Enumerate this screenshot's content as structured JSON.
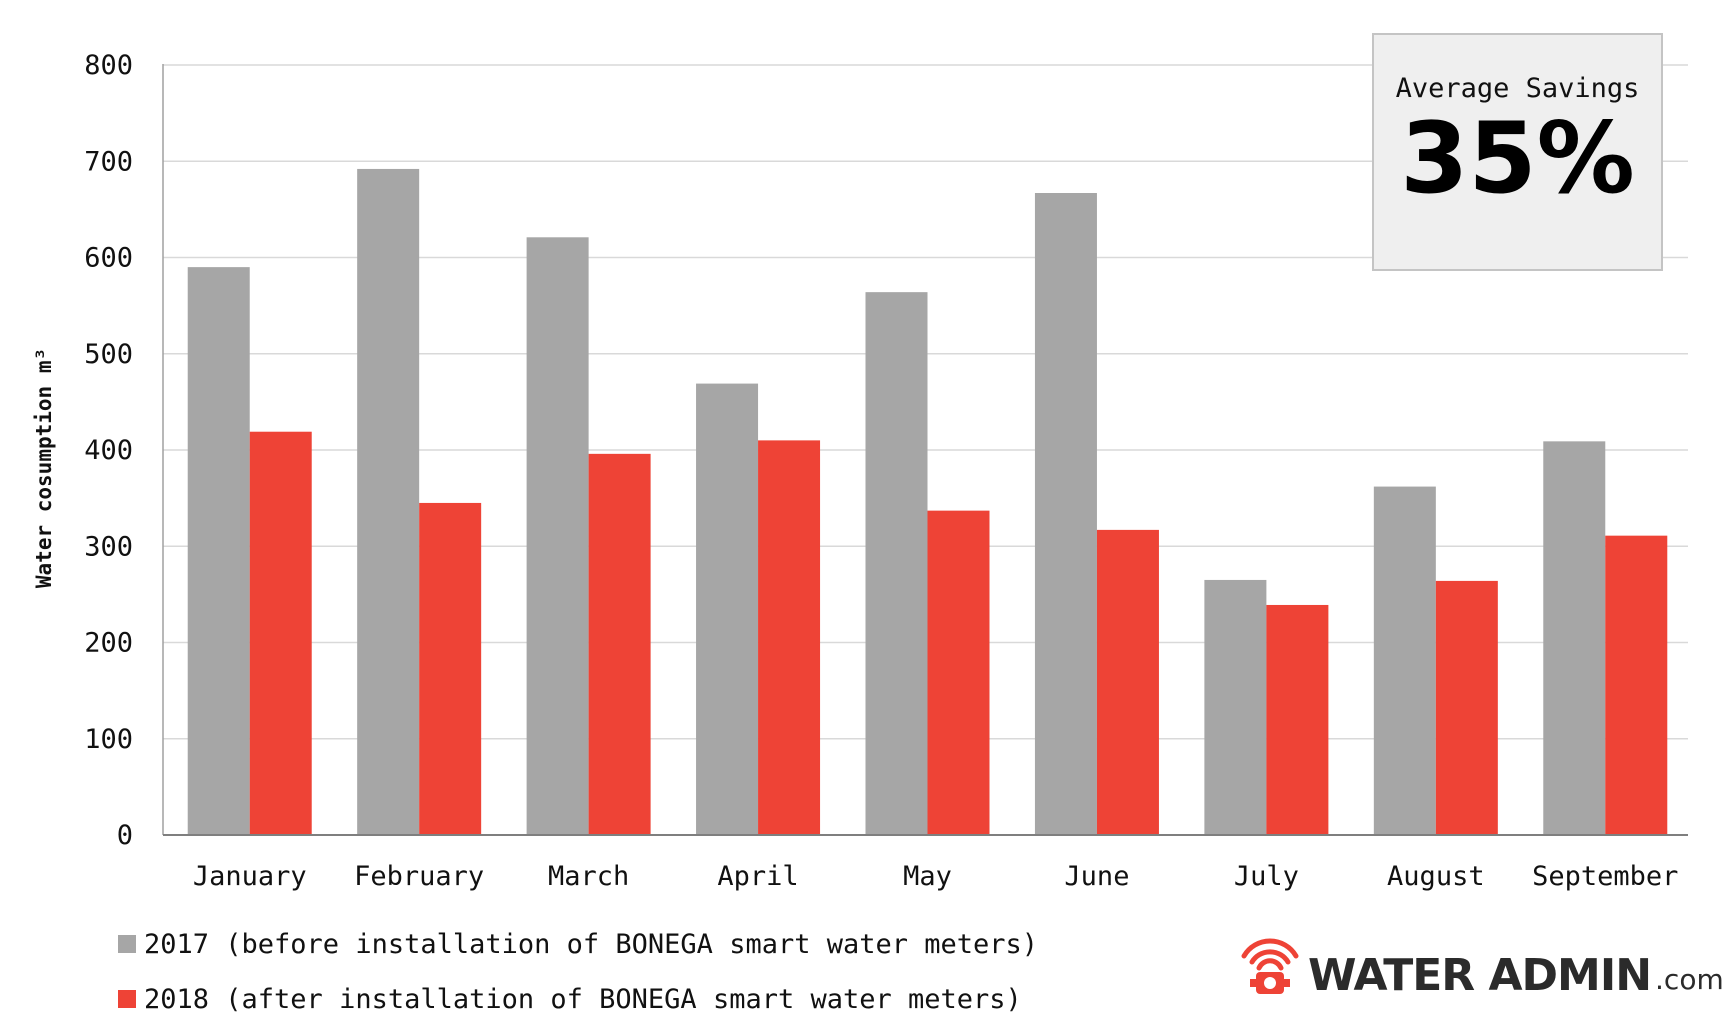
{
  "chart_data": {
    "type": "bar",
    "title": "",
    "xlabel": "",
    "ylabel": "Water cosumption m³",
    "ylim": [
      0,
      800
    ],
    "yticks": [
      0,
      100,
      200,
      300,
      400,
      500,
      600,
      700,
      800
    ],
    "grid": true,
    "legend_position": "bottom-left",
    "categories": [
      "January",
      "February",
      "March",
      "April",
      "May",
      "June",
      "July",
      "August",
      "September"
    ],
    "series": [
      {
        "name": "2017 (before installation of BONEGA smart water meters)",
        "color": "#a6a6a6",
        "values": [
          590,
          692,
          621,
          469,
          564,
          667,
          265,
          362,
          409
        ]
      },
      {
        "name": "2018 (after installation of BONEGA smart water meters)",
        "color": "#ee4336",
        "values": [
          419,
          345,
          396,
          410,
          337,
          317,
          239,
          264,
          311
        ]
      }
    ]
  },
  "savings_box": {
    "label": "Average Savings",
    "value": "35%"
  },
  "logo": {
    "name": "WATER ADMIN",
    "suffix": ".com",
    "color": "#ee4336"
  }
}
